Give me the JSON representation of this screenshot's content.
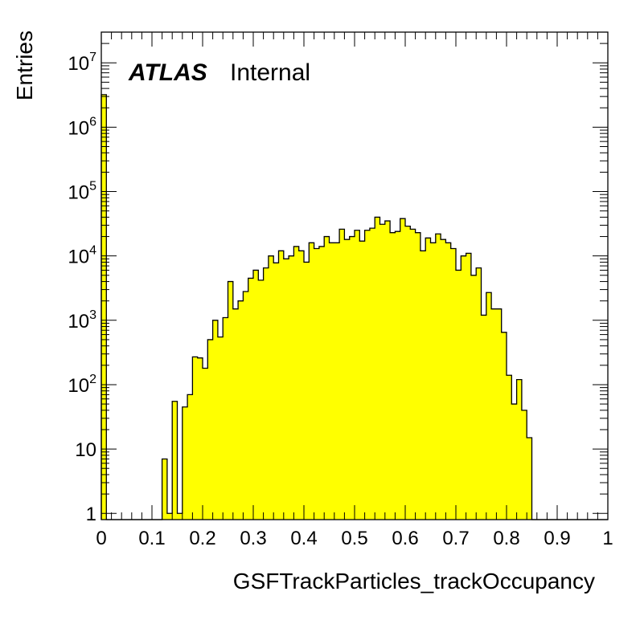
{
  "chart_data": {
    "type": "bar",
    "style": "histogram",
    "fill_color": "#ffff00",
    "line_color": "#000000",
    "xlabel": "GSFTrackParticles_trackOccupancy",
    "ylabel": "Entries",
    "xlim": [
      0,
      1
    ],
    "ylim": [
      0.8,
      30000000
    ],
    "yscale": "log",
    "grid": false,
    "x_ticks": [
      "0",
      "0.1",
      "0.2",
      "0.3",
      "0.4",
      "0.5",
      "0.6",
      "0.7",
      "0.8",
      "0.9",
      "1"
    ],
    "y_ticks": [
      {
        "value": 1,
        "base": "1",
        "exp": ""
      },
      {
        "value": 10,
        "base": "10",
        "exp": ""
      },
      {
        "value": 100,
        "base": "10",
        "exp": "2"
      },
      {
        "value": 1000,
        "base": "10",
        "exp": "3"
      },
      {
        "value": 10000,
        "base": "10",
        "exp": "4"
      },
      {
        "value": 100000,
        "base": "10",
        "exp": "5"
      },
      {
        "value": 1000000,
        "base": "10",
        "exp": "6"
      },
      {
        "value": 10000000,
        "base": "10",
        "exp": "7"
      }
    ],
    "bin_width": 0.01,
    "bin_edges": [
      0,
      1
    ],
    "values": [
      3200000,
      0,
      0,
      0,
      0,
      0,
      0,
      0,
      0,
      0,
      0,
      0,
      7,
      1,
      55,
      1,
      45,
      70,
      270,
      260,
      180,
      500,
      1000,
      550,
      1100,
      4000,
      1500,
      2000,
      2800,
      4500,
      6000,
      4200,
      6500,
      10000,
      7800,
      12000,
      9000,
      10000,
      14000,
      12000,
      8000,
      16000,
      13000,
      14000,
      20000,
      16000,
      16000,
      26000,
      18000,
      20000,
      25000,
      17000,
      25000,
      27000,
      40000,
      31000,
      35000,
      23000,
      24000,
      38000,
      29000,
      26000,
      23000,
      12000,
      19000,
      16000,
      22000,
      18000,
      16000,
      13000,
      6000,
      10000,
      11000,
      5000,
      6500,
      1200,
      2700,
      1500,
      1500,
      650,
      140,
      50,
      120,
      40,
      15,
      0,
      0,
      0,
      0,
      0,
      0,
      0,
      0,
      0,
      0,
      0,
      0,
      0,
      0,
      0
    ],
    "annotations": [
      {
        "text": "ATLAS",
        "style": "bold-italic"
      },
      {
        "text": "Internal",
        "style": "normal"
      }
    ]
  }
}
